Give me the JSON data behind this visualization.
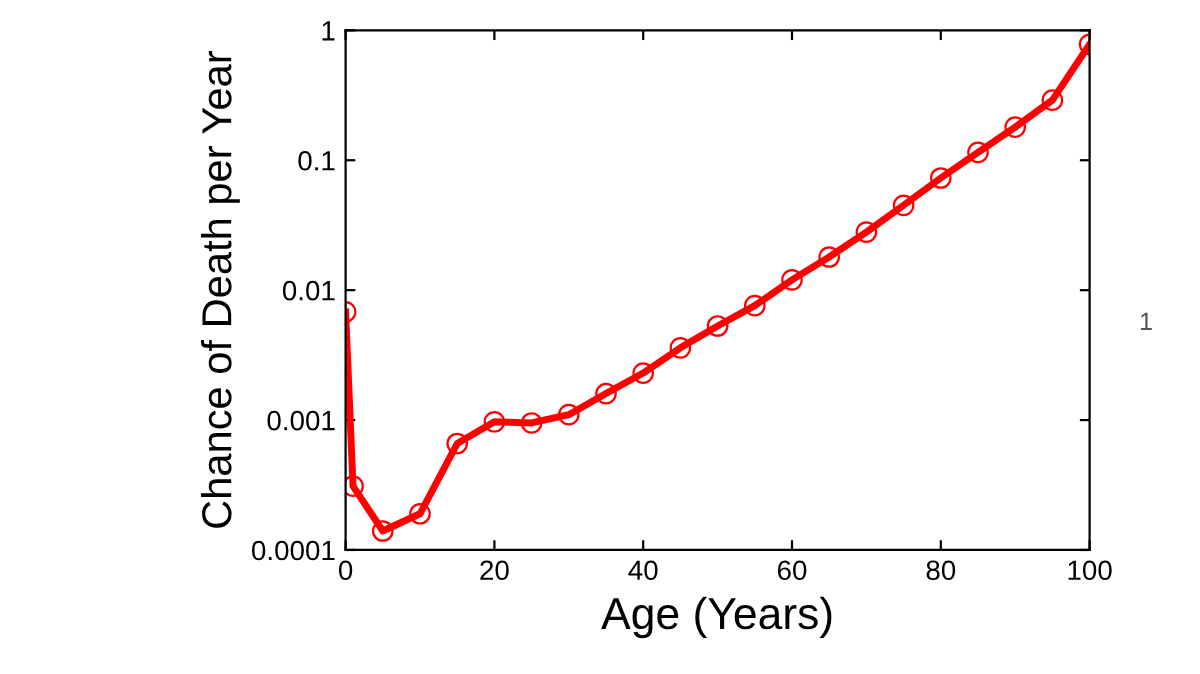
{
  "chart_data": {
    "type": "line",
    "xlabel": "Age (Years)",
    "ylabel": "Chance of Death per Year",
    "log": "y",
    "x": [
      0,
      1,
      5,
      10,
      15,
      20,
      25,
      30,
      35,
      40,
      45,
      50,
      55,
      60,
      65,
      70,
      75,
      80,
      85,
      90,
      95,
      100
    ],
    "series": [
      {
        "color": "#ff0000",
        "values": [
          0.0068,
          0.00031,
          0.00014,
          0.00019,
          0.00066,
          0.00097,
          0.00095,
          0.0011,
          0.0016,
          0.0023,
          0.0036,
          0.0053,
          0.0076,
          0.012,
          0.018,
          0.028,
          0.045,
          0.073,
          0.115,
          0.18,
          0.29,
          0.78
        ]
      }
    ],
    "xlim": [
      0,
      100
    ],
    "xticks": [
      0,
      20,
      40,
      60,
      80,
      100
    ],
    "ylim": [
      0.0001,
      1
    ],
    "yticks": [
      {
        "value": 0.0001,
        "label": "0.0001"
      },
      {
        "value": 0.001,
        "label": "0.001"
      },
      {
        "value": 0.01,
        "label": "0.01"
      },
      {
        "value": 0.1,
        "label": "0.1"
      },
      {
        "value": 1,
        "label": "1"
      }
    ],
    "marker": "circle",
    "line_style": "solid",
    "grid": false,
    "legend": false,
    "annotations": [
      "1"
    ]
  }
}
